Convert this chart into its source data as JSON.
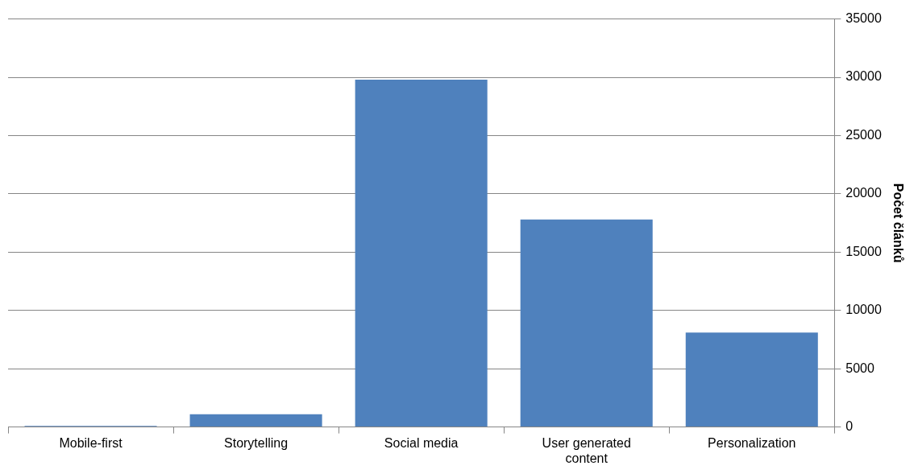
{
  "chart_data": {
    "type": "bar",
    "ylabel": "Počet článků",
    "categories": [
      "Mobile-first",
      "Storytelling",
      "Social media",
      "User generated content",
      "Personalization"
    ],
    "values": [
      100,
      1100,
      29800,
      17800,
      8100
    ],
    "color": "#4f81bd",
    "ylim": [
      0,
      35000
    ],
    "yticks": [
      0,
      5000,
      10000,
      15000,
      20000,
      25000,
      30000,
      35000
    ],
    "grid": "y"
  }
}
